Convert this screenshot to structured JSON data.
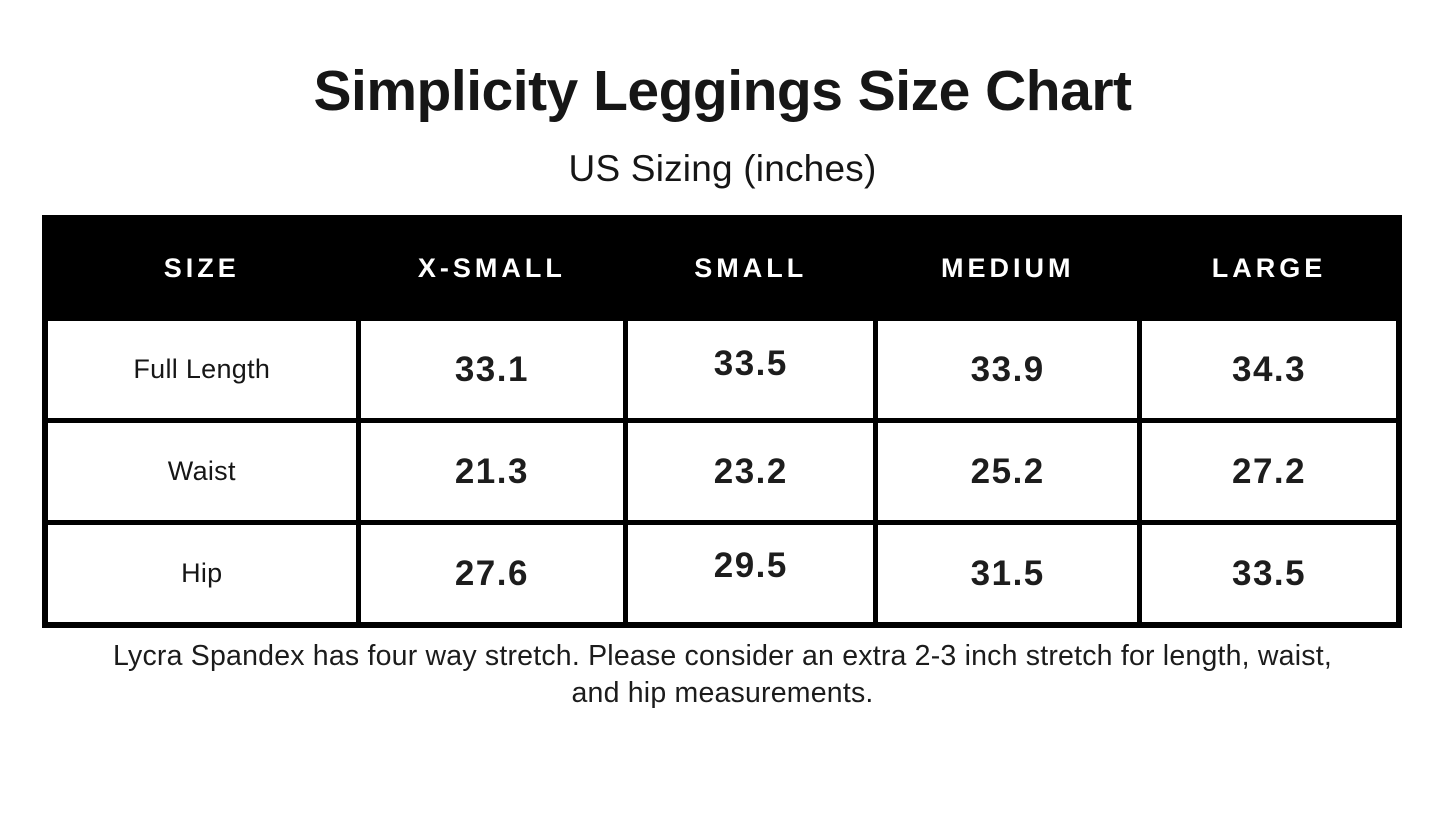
{
  "page": {
    "title": "Simplicity Leggings Size Chart",
    "subtitle": "US Sizing (inches)",
    "footnote_line1": "Lycra Spandex has four way stretch. Please consider an extra 2-3 inch stretch for length, waist,",
    "footnote_line2": "and hip measurements."
  },
  "colors": {
    "background": "#ffffff",
    "header_bg": "#000000",
    "header_text": "#ffffff",
    "body_text": "#161616",
    "border": "#000000"
  },
  "chart_data": {
    "type": "table",
    "title": "Simplicity Leggings Size Chart",
    "subtitle": "US Sizing (inches)",
    "units": "inches",
    "columns": [
      "SIZE",
      "X-SMALL",
      "SMALL",
      "MEDIUM",
      "LARGE"
    ],
    "rows": [
      {
        "label": "Full Length",
        "values": [
          "33.1",
          "33.5",
          "33.9",
          "34.3"
        ]
      },
      {
        "label": "Waist",
        "values": [
          "21.3",
          "23.2",
          "25.2",
          "27.2"
        ]
      },
      {
        "label": "Hip",
        "values": [
          "27.6",
          "29.5",
          "31.5",
          "33.5"
        ]
      }
    ],
    "note": "Lycra Spandex has four way stretch. Please consider an extra 2-3 inch stretch for length, waist, and hip measurements."
  }
}
